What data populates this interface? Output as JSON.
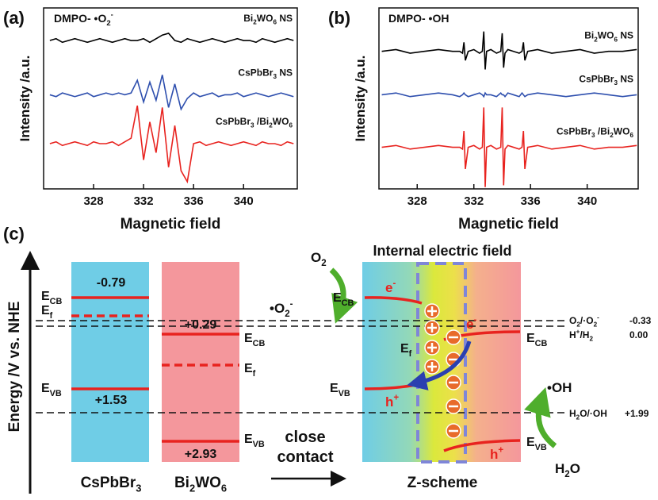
{
  "chart_data": [
    {
      "type": "line",
      "panel_label": "(a)",
      "title": [
        "DMPO- •O",
        {
          "sub": "2"
        },
        {
          "sup": "-"
        }
      ],
      "x_label": "Magnetic field",
      "y_label": "Intensity /a.u.",
      "xlim": [
        324,
        344.3
      ],
      "ylim": [
        0,
        10
      ],
      "xticks": [
        328,
        332,
        336,
        340
      ],
      "x": [
        324.5,
        325,
        325.5,
        326,
        326.5,
        327,
        327.5,
        328,
        328.5,
        329,
        329.5,
        330,
        330.5,
        331,
        331.5,
        332,
        332.5,
        333,
        333.5,
        334,
        334.5,
        335,
        335.5,
        336,
        336.5,
        337,
        337.5,
        338,
        338.5,
        339,
        339.5,
        340,
        340.5,
        341,
        341.5,
        342,
        342.5,
        343,
        343.5,
        344
      ],
      "series": [
        {
          "name": [
            "Bi",
            {
              "sub": "2"
            },
            "WO",
            {
              "sub": "6"
            },
            " NS"
          ],
          "color": "#000000",
          "values": [
            8.2,
            8.3,
            8.1,
            8.2,
            8.3,
            8.2,
            8.1,
            8.2,
            8.3,
            8.2,
            8.1,
            8.2,
            8.3,
            8.2,
            8.2,
            8.3,
            8.1,
            8.3,
            8.5,
            8.6,
            8.2,
            8.1,
            8.3,
            8.2,
            8.1,
            8.2,
            8.3,
            8.2,
            8.1,
            8.2,
            8.3,
            8.2,
            8.2,
            8.1,
            8.3,
            8.2,
            8.1,
            8.2,
            8.3,
            8.2
          ]
        },
        {
          "name": [
            "CsPbBr",
            {
              "sub": "3"
            },
            " NS"
          ],
          "color": "#2e4fae",
          "values": [
            5.2,
            5.1,
            5.3,
            5.2,
            5.1,
            5.2,
            5.3,
            5.1,
            5.2,
            5.3,
            5.2,
            5.3,
            5.2,
            5.3,
            6.0,
            4.8,
            5.9,
            4.9,
            6.3,
            4.5,
            5.8,
            4.4,
            5.0,
            5.3,
            5.1,
            5.2,
            5.3,
            5.1,
            5.2,
            5.2,
            5.3,
            5.1,
            5.2,
            5.3,
            5.2,
            5.1,
            5.2,
            5.3,
            5.2,
            5.1
          ]
        },
        {
          "name": [
            "CsPbBr",
            {
              "sub": "3"
            },
            " /Bi",
            {
              "sub": "2"
            },
            "WO",
            {
              "sub": "6"
            }
          ],
          "color": "#e8231f",
          "values": [
            2.5,
            2.6,
            2.4,
            2.5,
            2.6,
            2.5,
            2.4,
            2.6,
            2.5,
            2.5,
            2.6,
            2.4,
            2.6,
            2.8,
            4.6,
            1.6,
            3.7,
            2.0,
            4.5,
            1.2,
            3.5,
            1.0,
            0.4,
            2.5,
            2.6,
            2.4,
            2.5,
            2.6,
            2.5,
            2.4,
            2.5,
            2.6,
            2.5,
            2.4,
            2.6,
            2.5,
            2.5,
            2.4,
            2.6,
            2.5
          ]
        }
      ]
    },
    {
      "type": "line",
      "panel_label": "(b)",
      "title": [
        "DMPO- •OH"
      ],
      "x_label": "Magnetic field",
      "y_label": "Intensity /a.u.",
      "xlim": [
        325.3,
        343.6
      ],
      "ylim": [
        0,
        10
      ],
      "xticks": [
        328,
        332,
        336,
        340
      ],
      "x": [
        325.5,
        326.5,
        327.5,
        328.5,
        329.5,
        330.5,
        331.0,
        331.2,
        331.3,
        331.4,
        331.6,
        332.0,
        332.4,
        332.6,
        332.7,
        332.8,
        332.9,
        333.2,
        333.6,
        333.9,
        334.0,
        334.1,
        334.2,
        334.4,
        334.8,
        335.2,
        335.4,
        335.5,
        335.6,
        335.8,
        336.5,
        337.5,
        338.5,
        339.5,
        340.5,
        341.5,
        342.5,
        343.5
      ],
      "series": [
        {
          "name": [
            "Bi",
            {
              "sub": "2"
            },
            "WO",
            {
              "sub": "6"
            },
            " NS"
          ],
          "color": "#000000",
          "values": [
            7.6,
            7.7,
            7.5,
            7.6,
            7.7,
            7.6,
            7.6,
            7.5,
            8.1,
            7.1,
            7.6,
            7.7,
            7.5,
            7.6,
            8.7,
            6.6,
            7.6,
            7.7,
            7.5,
            7.6,
            8.6,
            6.7,
            7.5,
            7.7,
            7.6,
            7.5,
            7.6,
            8.1,
            7.1,
            7.6,
            7.7,
            7.5,
            7.6,
            7.7,
            7.5,
            7.6,
            7.6,
            7.7
          ]
        },
        {
          "name": [
            "CsPbBr",
            {
              "sub": "3"
            },
            " NS"
          ],
          "color": "#2e4fae",
          "values": [
            5.2,
            5.3,
            5.1,
            5.2,
            5.3,
            5.2,
            5.1,
            5.2,
            5.3,
            5.2,
            5.1,
            5.2,
            5.3,
            5.2,
            5.1,
            5.3,
            5.2,
            5.2,
            5.1,
            5.3,
            5.2,
            5.2,
            5.1,
            5.3,
            5.2,
            5.1,
            5.3,
            5.2,
            5.1,
            5.2,
            5.3,
            5.2,
            5.1,
            5.2,
            5.3,
            5.2,
            5.1,
            5.2
          ]
        },
        {
          "name": [
            "CsPbBr",
            {
              "sub": "3"
            },
            " /Bi",
            {
              "sub": "2"
            },
            "WO",
            {
              "sub": "6"
            }
          ],
          "color": "#e8231f",
          "values": [
            2.3,
            2.4,
            2.2,
            2.3,
            2.4,
            2.3,
            2.3,
            2.2,
            3.2,
            1.1,
            2.3,
            2.4,
            2.2,
            2.3,
            4.5,
            0.1,
            2.3,
            2.4,
            2.2,
            2.3,
            4.5,
            0.2,
            2.2,
            2.4,
            2.3,
            2.2,
            2.3,
            3.2,
            1.1,
            2.3,
            2.4,
            2.2,
            2.3,
            2.4,
            2.2,
            2.3,
            2.3,
            2.4
          ]
        }
      ]
    }
  ],
  "diagram": {
    "label": "(c)",
    "y_axis": "Energy /V vs. NHE",
    "cspbbr3": {
      "name": [
        "CsPbBr",
        {
          "sub": "3"
        }
      ],
      "cb": "-0.79",
      "vb": "+1.53",
      "e_cb": [
        "E",
        {
          "sub": "CB"
        }
      ],
      "e_f": [
        "E",
        {
          "sub": "f"
        }
      ],
      "e_vb": [
        "E",
        {
          "sub": "VB"
        }
      ]
    },
    "bi2wo6": {
      "name": [
        "Bi",
        {
          "sub": "2"
        },
        "WO",
        {
          "sub": "6"
        }
      ],
      "cb": "+0.29",
      "vb": "+2.93",
      "e_cb": [
        "E",
        {
          "sub": "CB"
        }
      ],
      "e_f": [
        "E",
        {
          "sub": "f"
        }
      ],
      "e_vb": [
        "E",
        {
          "sub": "VB"
        }
      ]
    },
    "potentials": [
      {
        "couple": [
          "O",
          {
            "sub": "2"
          },
          "/·O",
          {
            "sub": "2"
          },
          {
            "sup": "-"
          }
        ],
        "value": "-0.33"
      },
      {
        "couple": [
          "H",
          {
            "sup": "+"
          },
          "/H",
          {
            "sub": "2"
          }
        ],
        "value": "0.00"
      },
      {
        "couple": [
          "H",
          {
            "sub": "2"
          },
          "O/·OH"
        ],
        "value": "+1.99"
      }
    ],
    "transition": [
      "close",
      "contact"
    ],
    "z_scheme": {
      "title": "Internal electric field",
      "name": "Z-scheme",
      "o2": [
        "O",
        {
          "sub": "2"
        }
      ],
      "superoxide": [
        "•O",
        {
          "sub": "2"
        },
        {
          "sup": "-"
        }
      ],
      "hydroxyl": "•OH",
      "water": [
        "H",
        {
          "sub": "2"
        },
        "O"
      ],
      "electrons": [
        [
          "e",
          {
            "sup": "-"
          }
        ],
        [
          "e",
          {
            "sup": "-"
          }
        ]
      ],
      "holes": [
        [
          "h",
          {
            "sup": "+"
          }
        ],
        [
          "h",
          {
            "sup": "+"
          }
        ]
      ],
      "e_cb_left": [
        "E",
        {
          "sub": "CB"
        }
      ],
      "e_f": [
        "E",
        {
          "sub": "f"
        }
      ],
      "e_vb_left": [
        "E",
        {
          "sub": "VB"
        }
      ],
      "e_cb_right": [
        "E",
        {
          "sub": "CB"
        }
      ],
      "e_vb_right": [
        "E",
        {
          "sub": "VB"
        }
      ]
    }
  }
}
